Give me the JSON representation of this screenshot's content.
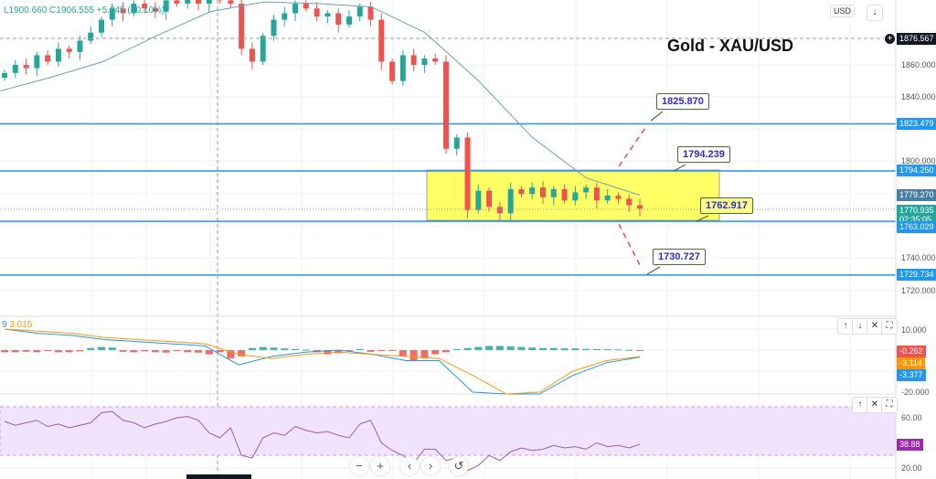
{
  "title": "Gold - XAU/USD",
  "legend": "L1900.660  C1906.555  +5.845 (+0.10%)",
  "currency": "USD",
  "price_axis": [
    "1860.000",
    "1840.000",
    "1800.000",
    "1740.000",
    "1720.000"
  ],
  "price_labels": {
    "crosshair": "1876.567",
    "r1": "1823.479",
    "r2": "1794.250",
    "ma": "1779.270",
    "last": "1770.935",
    "countdown": "02:35:05",
    "s1": "1763.029",
    "s2": "1729.734"
  },
  "callouts": {
    "t1": "1825.870",
    "t2": "1794.239",
    "t3": "1762.917",
    "t4": "1730.727"
  },
  "macd": {
    "legend_a": "9",
    "legend_b": "3.015",
    "axis": [
      "10.000",
      "-20.000"
    ],
    "hist_label": "-0.262",
    "signal_label": "-3.114",
    "macd_label": "-3.377"
  },
  "rsi": {
    "axis": [
      "60.00",
      "20.00"
    ],
    "label": "38.88"
  },
  "colors": {
    "up": "#26a69a",
    "down": "#ef5350",
    "level": "#2196f3",
    "zone": "#ffff66",
    "rsi": "#9c27b0",
    "signal": "#ff9800",
    "macd": "#2196f3"
  },
  "icons": {
    "down": "↓",
    "max": "⛶",
    "up": "↑",
    "close": "✕",
    "zoom_out": "−",
    "zoom_in": "+",
    "left": "‹",
    "right": "›",
    "reset": "↺"
  },
  "chart_data": [
    {
      "type": "candlestick",
      "title": "Gold - XAU/USD",
      "ylim": [
        1712,
        1902
      ],
      "levels": [
        1823.479,
        1794.25,
        1763.029,
        1729.734
      ],
      "zone": [
        1763.029,
        1794.25
      ],
      "close": [
        1855,
        1860,
        1858,
        1866,
        1862,
        1870,
        1868,
        1875,
        1880,
        1888,
        1895,
        1892,
        1898,
        1895,
        1893,
        1900,
        1898,
        1902,
        1898,
        1903,
        1900,
        1898,
        1870,
        1862,
        1878,
        1888,
        1892,
        1898,
        1895,
        1890,
        1892,
        1885,
        1890,
        1896,
        1888,
        1862,
        1850,
        1866,
        1860,
        1864,
        1862,
        1808,
        1815,
        1770,
        1782,
        1772,
        1768,
        1783,
        1780,
        1784,
        1778,
        1783,
        1776,
        1781,
        1784,
        1776,
        1779,
        1777,
        1773,
        1770.935
      ],
      "ma": [
        1843,
        1852,
        1862,
        1878,
        1893,
        1899,
        1898,
        1896,
        1880,
        1850,
        1815,
        1790,
        1779.27
      ]
    },
    {
      "type": "macd",
      "ylim": [
        -20,
        12
      ],
      "macd": [
        10,
        8,
        7,
        5,
        4,
        3,
        2,
        -7,
        -3,
        -1,
        0,
        -2,
        -5,
        -5,
        -20,
        -28,
        -22,
        -12,
        -6,
        -3.377
      ],
      "signal": [
        10,
        9,
        8,
        6,
        5,
        4,
        3,
        -2,
        -4,
        -2,
        -1,
        -2,
        -3,
        -4,
        -12,
        -24,
        -20,
        -10,
        -5,
        -3.114
      ],
      "hist": [
        -1,
        -1,
        -0.8,
        -1,
        -0.5,
        -1,
        -1,
        -0.6,
        1,
        1.5,
        1.2,
        -0.8,
        -1,
        -0.6,
        -1,
        -1.2,
        -0.5,
        -1,
        -1.2,
        -2,
        -1,
        -4,
        -3,
        1,
        1.5,
        1.2,
        0.8,
        0.5,
        0.2,
        -1,
        -2,
        -1.5,
        -0.5,
        0.5,
        -0.8,
        -0.5,
        -0.4,
        -3,
        -5,
        -4,
        -2,
        -1,
        0.5,
        1,
        1.5,
        2,
        2,
        1.8,
        1.5,
        1.2,
        1,
        1,
        0.8,
        0.8,
        0.6,
        0.5,
        0.4,
        0.3,
        0.1,
        -0.262
      ]
    },
    {
      "type": "rsi",
      "ylim": [
        15,
        80
      ],
      "band": [
        30,
        70
      ],
      "values": [
        57,
        54,
        56,
        58,
        53,
        55,
        52,
        54,
        56,
        64,
        65,
        58,
        56,
        52,
        55,
        57,
        60,
        61,
        58,
        48,
        44,
        52,
        30,
        28,
        44,
        48,
        46,
        53,
        50,
        48,
        49,
        46,
        44,
        55,
        58,
        40,
        34,
        30,
        24,
        35,
        35,
        26,
        28,
        18,
        22,
        30,
        26,
        33,
        36,
        34,
        35,
        38,
        36,
        37,
        35,
        40,
        37,
        38,
        36,
        38.88
      ]
    }
  ]
}
